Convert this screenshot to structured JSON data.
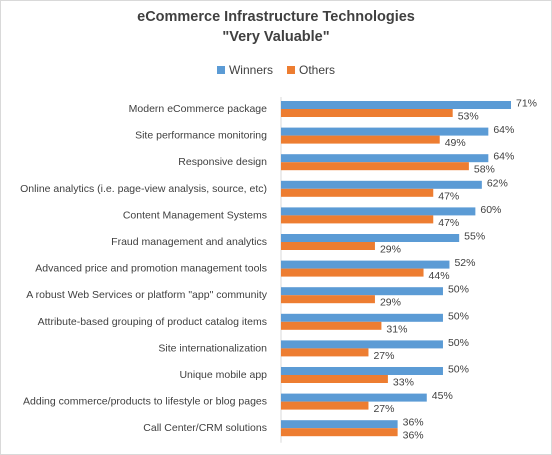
{
  "chart_data": {
    "type": "bar",
    "orientation": "horizontal",
    "title": "eCommerce Infrastructure Technologies",
    "subtitle": "\"Very Valuable\"",
    "legend_position": "top",
    "grid": false,
    "xlim": [
      0,
      75
    ],
    "categories": [
      "Modern eCommerce package",
      "Site performance monitoring",
      "Responsive design",
      "Online analytics (i.e. page-view analysis, source, etc)",
      "Content Management Systems",
      "Fraud management and analytics",
      "Advanced price and promotion management tools",
      "A robust Web Services or platform \"app\" community",
      "Attribute-based grouping of product catalog items",
      "Site internationalization",
      "Unique mobile app",
      "Adding commerce/products to lifestyle or blog pages",
      "Call Center/CRM solutions"
    ],
    "series": [
      {
        "name": "Winners",
        "color": "#5b9bd5",
        "values": [
          71,
          64,
          64,
          62,
          60,
          55,
          52,
          50,
          50,
          50,
          50,
          45,
          36
        ],
        "labels": [
          "71%",
          "64%",
          "64%",
          "62%",
          "60%",
          "55%",
          "52%",
          "50%",
          "50%",
          "50%",
          "50%",
          "45%",
          "36%"
        ]
      },
      {
        "name": "Others",
        "color": "#ed7d31",
        "values": [
          53,
          49,
          58,
          47,
          47,
          29,
          44,
          29,
          31,
          27,
          33,
          27,
          36
        ],
        "labels": [
          "53%",
          "49%",
          "58%",
          "47%",
          "47%",
          "29%",
          "44%",
          "29%",
          "31%",
          "27%",
          "33%",
          "27%",
          "36%"
        ]
      }
    ]
  }
}
